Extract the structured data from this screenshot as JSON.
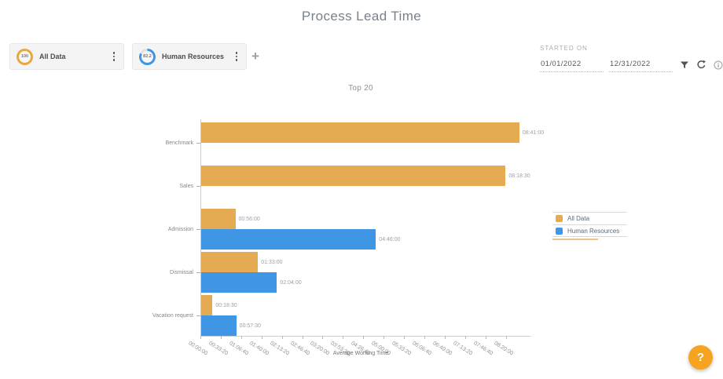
{
  "page": {
    "title": "Process Lead Time"
  },
  "dataset_chips": {
    "items": [
      {
        "label": "All Data",
        "score": "100",
        "score_pct": 100,
        "ring_color": "#E5A93F"
      },
      {
        "label": "Human Resources",
        "score": "82.2",
        "score_pct": 82.2,
        "ring_color": "#3E96E4"
      }
    ],
    "add_chip_label": "+"
  },
  "date_filter": {
    "label": "STARTED ON",
    "start_value": "01/01/2022",
    "end_value": "12/31/2022"
  },
  "chart_data": {
    "type": "bar",
    "orientation": "horizontal",
    "title": "Top 20",
    "xlabel": "Average Working Time",
    "categories": [
      "Benchmark",
      "Sales",
      "Admission",
      "Dismissal",
      "Vacation request"
    ],
    "series": [
      {
        "name": "All Data",
        "color": "#E5AB53",
        "values": [
          "08:41:00",
          "08:18:30",
          "00:56:00",
          "01:33:00",
          "00:18:30"
        ],
        "values_seconds": [
          31260,
          29910,
          3360,
          5580,
          1110
        ]
      },
      {
        "name": "Human Resources",
        "color": "#3E96E4",
        "values": [
          null,
          null,
          "04:46:00",
          "02:04:00",
          "00:57:30"
        ],
        "values_seconds": [
          null,
          null,
          17160,
          7440,
          3450
        ]
      }
    ],
    "x_ticks": [
      "00:00:00",
      "00:33:20",
      "01:06:40",
      "01:40:00",
      "02:13:20",
      "02:46:40",
      "03:20:00",
      "03:53:20",
      "04:26:40",
      "05:00:00",
      "05:33:20",
      "06:06:40",
      "06:40:00",
      "07:13:20",
      "07:46:40",
      "08:20:00"
    ],
    "x_tick_seconds": [
      0,
      2000,
      4000,
      6000,
      8000,
      10000,
      12000,
      14000,
      16000,
      18000,
      20000,
      22000,
      24000,
      26000,
      28000,
      30000
    ],
    "x_max_seconds": 31500,
    "legend": {
      "position": "right",
      "entries": [
        "All Data",
        "Human Resources"
      ]
    },
    "axis_colors": {
      "y_axis_line": "#A9D5F5",
      "x_axis_line": "#C9CDD1"
    }
  },
  "help_button": {
    "label": "?",
    "color": "#F6A320"
  }
}
